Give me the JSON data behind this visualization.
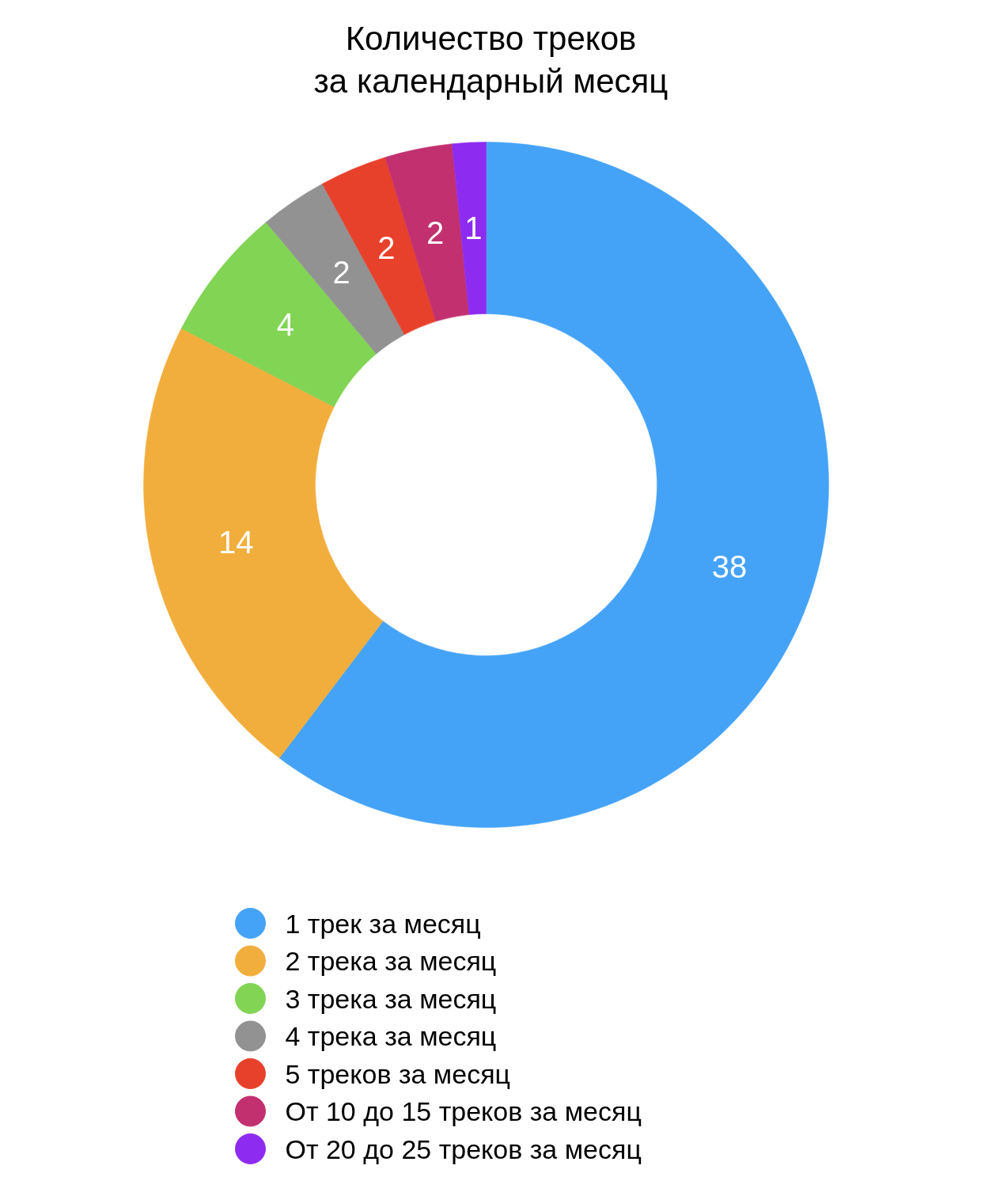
{
  "chart_data": {
    "type": "donut",
    "title": "Количество треков за календарный месяц",
    "categories": [
      "1 трек за месяц",
      "2 трека за месяц",
      "3 трека за месяц",
      "4 трека за месяц",
      "5 треков за месяц",
      "От 10 до 15 треков за месяц",
      "От 20 до 25 треков за месяц"
    ],
    "values": [
      38,
      14,
      4,
      2,
      2,
      2,
      1
    ],
    "colors": [
      "#45a3f7",
      "#f2ae3d",
      "#82d455",
      "#929292",
      "#e8412b",
      "#c2306f",
      "#8d2cf0"
    ],
    "data_labels": true,
    "legend": "bottom"
  }
}
